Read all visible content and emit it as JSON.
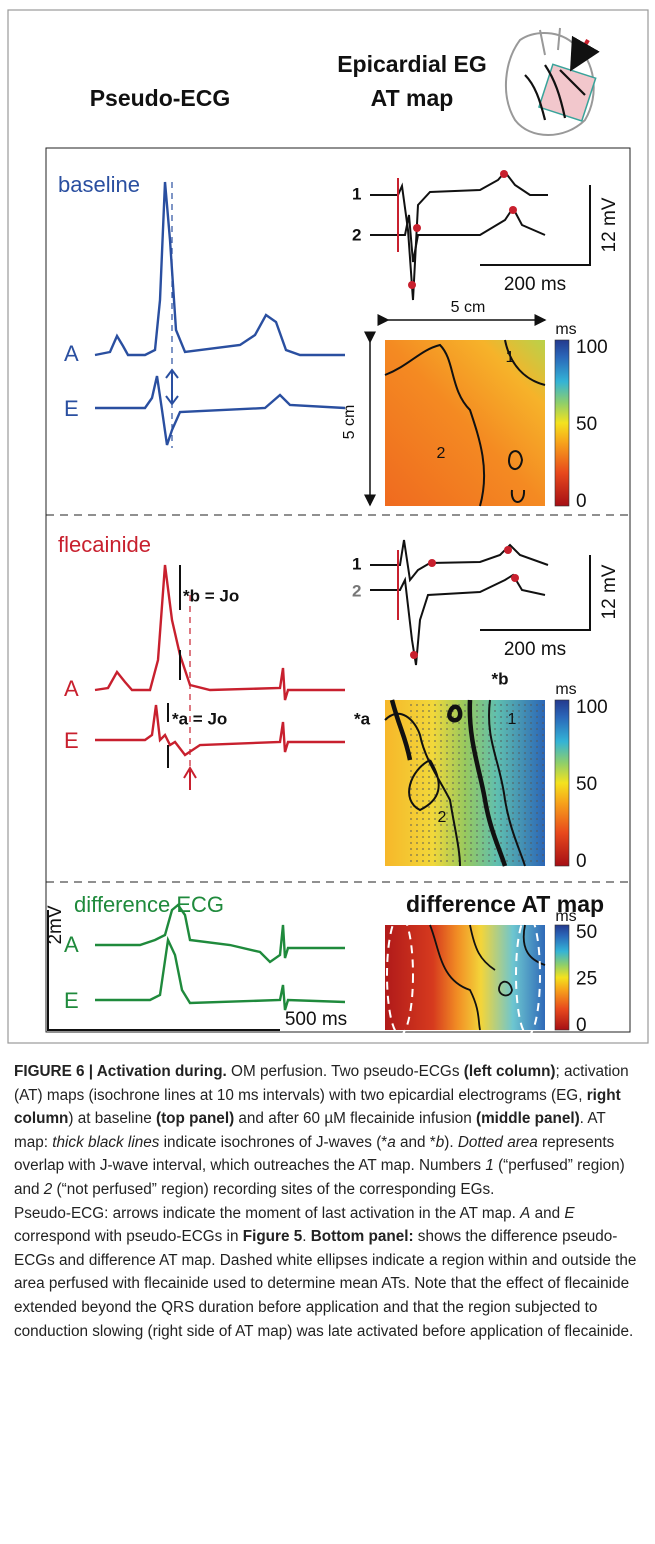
{
  "header": {
    "left_title": "Pseudo-ECG",
    "right_title": [
      "Epicardial EG",
      "AT map"
    ]
  },
  "panels": [
    {
      "label": "baseline",
      "trace_labels": [
        "A",
        "E"
      ],
      "eg_labels": [
        "1",
        "2"
      ],
      "scale_v": "12 mV",
      "scale_t": "200 ms",
      "dist_h": "5 cm",
      "dist_v": "5 cm",
      "map_sites": [
        "1",
        "2"
      ],
      "colorbar": {
        "unit": "ms",
        "ticks": [
          100,
          50,
          0
        ]
      }
    },
    {
      "label": "flecainide",
      "annotations": [
        "*b = Jo",
        "*a = Jo",
        "*b",
        "*a"
      ],
      "trace_labels": [
        "A",
        "E"
      ],
      "eg_labels": [
        "1",
        "2"
      ],
      "scale_v": "12 mV",
      "scale_t": "200 ms",
      "map_sites": [
        "1",
        "2"
      ],
      "colorbar": {
        "unit": "ms",
        "ticks": [
          100,
          50,
          0
        ]
      }
    },
    {
      "label": "difference ECG",
      "scale_v": "2mV",
      "scale_t": "500 ms",
      "trace_labels": [
        "A",
        "E"
      ],
      "map_title": "difference AT map",
      "colorbar": {
        "unit": "ms",
        "ticks": [
          50,
          25,
          0
        ]
      }
    }
  ],
  "caption": {
    "parts": [
      "FIGURE 6 | Activation during.",
      " OM perfusion. Two pseudo-ECGs ",
      "(left column)",
      "; activation (AT) maps (isochrone lines at 10 ms intervals) with two epicardial electrograms (EG, ",
      "right column",
      ") at baseline ",
      "(top panel)",
      " and after 60 µM flecainide infusion ",
      "(middle panel)",
      ". AT map: ",
      "thick black lines",
      " indicate isochrones of J-waves (*",
      "a",
      " and *",
      "b",
      "). ",
      "Dotted area",
      " represents overlap with J-wave interval, which outreaches the AT map. Numbers ",
      "1",
      " (“perfused” region) and ",
      "2",
      " (“not perfused” region) recording sites of the corresponding EGs.",
      "Pseudo-ECG: arrows indicate the moment of last activation in the AT map. ",
      "A",
      " and ",
      "E",
      " correspond with pseudo-ECGs in ",
      "Figure 5",
      ". ",
      "Bottom panel:",
      " shows the difference pseudo-ECGs and difference AT map. Dashed white ellipses indicate a region within and outside the area perfused with flecainide used to determine mean ATs. Note that the effect of flecainide extended beyond the QRS duration before application and that the region subjected to conduction slowing (right side of AT map) was late activated before application of flecainide."
    ]
  }
}
